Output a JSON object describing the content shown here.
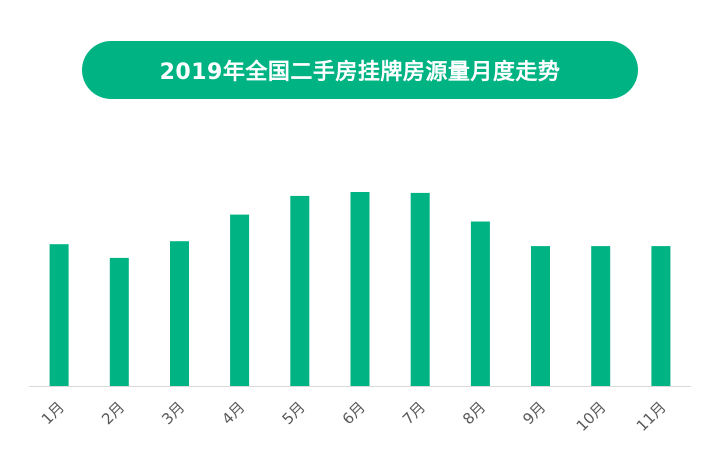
{
  "colors": {
    "accent": "#00b383",
    "axis": "#d9d9d9",
    "tick_text": "#595959"
  },
  "chart_data": {
    "type": "bar",
    "title": "2019年全国二手房挂牌房源量月度走势",
    "categories": [
      "1月",
      "2月",
      "3月",
      "4月",
      "5月",
      "6月",
      "7月",
      "8月",
      "9月",
      "10月",
      "11月"
    ],
    "values": [
      144,
      130,
      147,
      174,
      193,
      197,
      196,
      167,
      142,
      142,
      142
    ],
    "ylim": [
      0,
      200
    ],
    "xlabel": "",
    "ylabel": "",
    "grid": false,
    "legend": "none"
  }
}
